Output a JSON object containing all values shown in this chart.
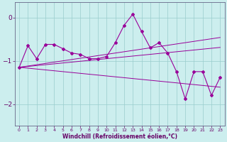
{
  "x": [
    0,
    1,
    2,
    3,
    4,
    5,
    6,
    7,
    8,
    9,
    10,
    11,
    12,
    13,
    14,
    15,
    16,
    17,
    18,
    19,
    20,
    21,
    22,
    23
  ],
  "main_line": [
    -1.15,
    -0.65,
    -0.95,
    -0.62,
    -0.62,
    -0.72,
    -0.82,
    -0.85,
    -0.95,
    -0.95,
    -0.9,
    -0.58,
    -0.18,
    0.08,
    -0.32,
    -0.7,
    -0.58,
    -0.82,
    -1.25,
    -1.88,
    -1.25,
    -1.25,
    -1.8,
    -1.38
  ],
  "trend1": [
    -1.15,
    -1.12,
    -1.09,
    -1.06,
    -1.03,
    -1.0,
    -0.97,
    -0.94,
    -0.91,
    -0.88,
    -0.85,
    -0.82,
    -0.79,
    -0.76,
    -0.73,
    -0.7,
    -0.67,
    -0.64,
    -0.61,
    -0.58,
    -0.55,
    -0.52,
    -0.49,
    -0.46
  ],
  "trend2": [
    -1.15,
    -1.13,
    -1.11,
    -1.09,
    -1.07,
    -1.05,
    -1.03,
    -1.01,
    -0.99,
    -0.97,
    -0.95,
    -0.93,
    -0.91,
    -0.89,
    -0.87,
    -0.85,
    -0.83,
    -0.81,
    -0.79,
    -0.77,
    -0.75,
    -0.73,
    -0.71,
    -0.69
  ],
  "trend3": [
    -1.15,
    -1.17,
    -1.19,
    -1.21,
    -1.23,
    -1.25,
    -1.27,
    -1.29,
    -1.31,
    -1.33,
    -1.35,
    -1.37,
    -1.39,
    -1.41,
    -1.43,
    -1.45,
    -1.47,
    -1.49,
    -1.51,
    -1.53,
    -1.55,
    -1.57,
    -1.59,
    -1.61
  ],
  "line_color": "#990099",
  "bg_color": "#cceeee",
  "grid_color": "#99cccc",
  "text_color": "#660066",
  "xlabel": "Windchill (Refroidissement éolien,°C)",
  "ylim": [
    -2.5,
    0.35
  ],
  "xlim": [
    -0.5,
    23.5
  ],
  "yticks": [
    -2,
    -1,
    0
  ],
  "xticks": [
    0,
    1,
    2,
    3,
    4,
    5,
    6,
    7,
    8,
    9,
    10,
    11,
    12,
    13,
    14,
    15,
    16,
    17,
    18,
    19,
    20,
    21,
    22,
    23
  ]
}
